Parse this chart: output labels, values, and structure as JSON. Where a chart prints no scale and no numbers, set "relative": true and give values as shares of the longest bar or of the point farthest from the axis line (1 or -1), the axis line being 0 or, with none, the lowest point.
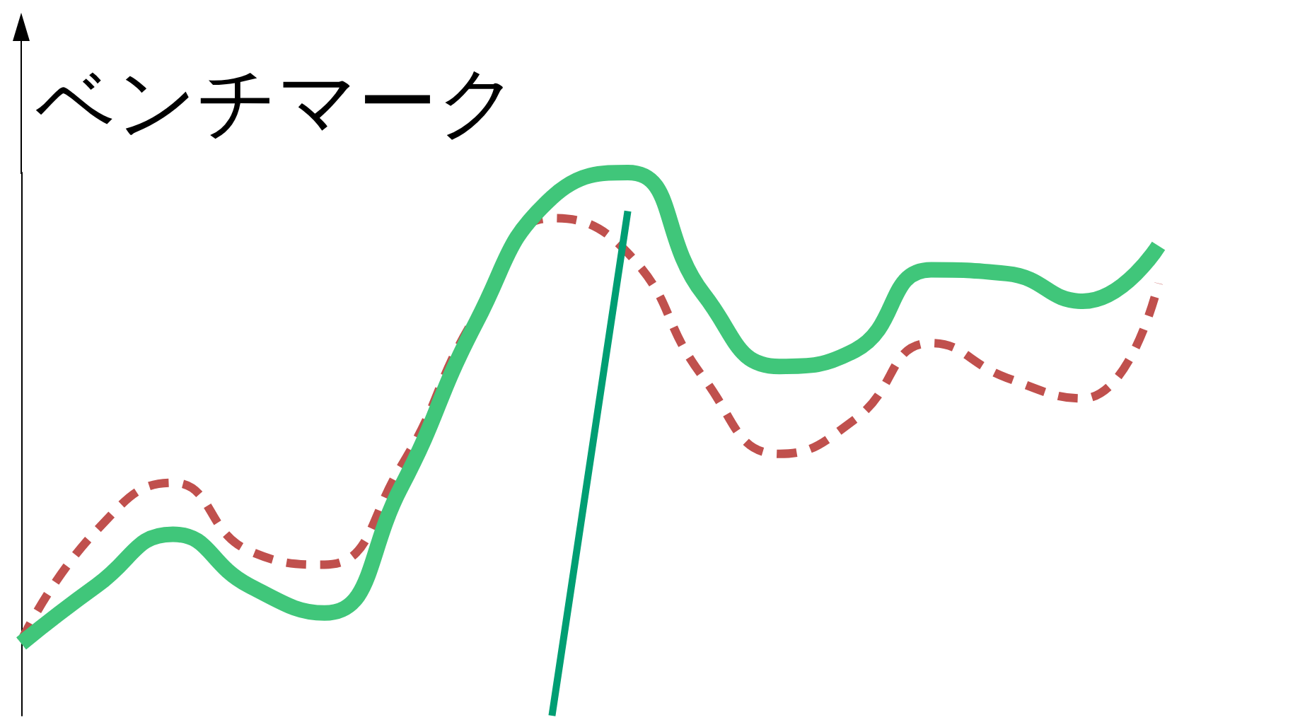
{
  "chart_data": {
    "type": "line",
    "title": "ベンチマーク",
    "relative": true,
    "categories": [
      null,
      null,
      null,
      null,
      null,
      null,
      null,
      null,
      null,
      null,
      null,
      null,
      null,
      null,
      null,
      null
    ],
    "series": [
      {
        "color": "#40c67a",
        "line_style": "solid",
        "values": [
          0.133,
          0.24,
          0.334,
          0.24,
          0.189,
          0.418,
          0.724,
          0.954,
          1,
          0.776,
          0.643,
          0.673,
          0.821,
          0.814,
          0.763,
          0.865
        ]
      },
      {
        "color": "#c0504d",
        "line_style": "dashed",
        "values": [
          0.138,
          0.342,
          0.429,
          0.304,
          0.278,
          0.457,
          0.737,
          0.916,
          0.852,
          0.622,
          0.482,
          0.546,
          0.686,
          0.622,
          0.584,
          0.796
        ]
      },
      {
        "color": "#009e73",
        "line_style": "solid",
        "values": [
          null,
          null,
          null,
          null,
          null,
          null,
          null,
          0,
          0.929,
          null,
          null,
          null,
          null,
          null,
          null,
          null
        ]
      }
    ],
    "grid": false,
    "marker": "none"
  }
}
